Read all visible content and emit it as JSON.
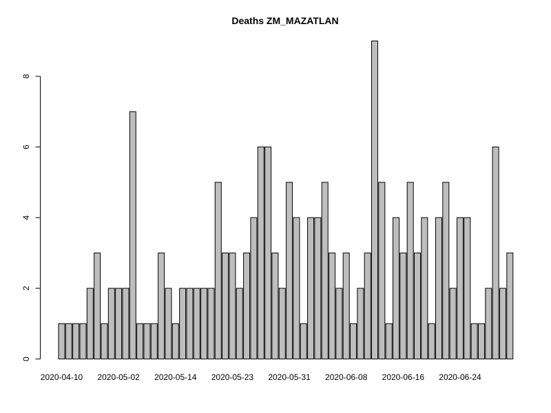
{
  "chart_data": {
    "type": "bar",
    "title": "Deaths ZM_MAZATLAN",
    "xlabel": "",
    "ylabel": "",
    "ylim": [
      0,
      9
    ],
    "yticks": [
      0,
      2,
      4,
      6,
      8
    ],
    "grid": false,
    "legend": "none",
    "bar_color": "#bebebe",
    "values": [
      1,
      1,
      1,
      1,
      2,
      3,
      1,
      2,
      2,
      2,
      7,
      1,
      1,
      1,
      3,
      2,
      1,
      2,
      2,
      2,
      2,
      2,
      5,
      3,
      3,
      2,
      3,
      4,
      6,
      6,
      3,
      2,
      5,
      4,
      1,
      4,
      4,
      5,
      3,
      2,
      3,
      1,
      2,
      3,
      9,
      5,
      1,
      4,
      3,
      5,
      3,
      4,
      1,
      4,
      5,
      2,
      4,
      4,
      1,
      1,
      2,
      6,
      2,
      3
    ],
    "xtick_labels": [
      {
        "index": 0,
        "label": "2020-04-10"
      },
      {
        "index": 8,
        "label": "2020-05-02"
      },
      {
        "index": 16,
        "label": "2020-05-14"
      },
      {
        "index": 24,
        "label": "2020-05-23"
      },
      {
        "index": 32,
        "label": "2020-05-31"
      },
      {
        "index": 40,
        "label": "2020-06-08"
      },
      {
        "index": 48,
        "label": "2020-06-16"
      },
      {
        "index": 56,
        "label": "2020-06-24"
      }
    ]
  }
}
